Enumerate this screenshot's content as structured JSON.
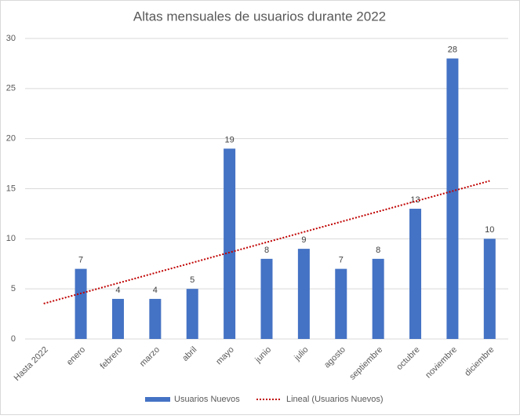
{
  "chart_data": {
    "type": "bar",
    "title": "Altas mensuales de usuarios durante 2022",
    "categories": [
      "Hasta 2022",
      "enero",
      "febrero",
      "marzo",
      "abril",
      "mayo",
      "junio",
      "julio",
      "agosto",
      "septiembre",
      "octubre",
      "noviembre",
      "diciembre"
    ],
    "series": [
      {
        "name": "Usuarios Nuevos",
        "color": "#4472c4",
        "values": [
          null,
          7,
          4,
          4,
          5,
          19,
          8,
          9,
          7,
          8,
          13,
          28,
          10
        ]
      }
    ],
    "trendline": {
      "kind": "linear",
      "name": "Lineal (Usuarios Nuevos)",
      "color": "#c00000"
    },
    "ylim": [
      0,
      30
    ],
    "yticks": [
      0,
      5,
      10,
      15,
      20,
      25,
      30
    ],
    "grid": true,
    "legend": "bottom",
    "data_labels": true
  }
}
